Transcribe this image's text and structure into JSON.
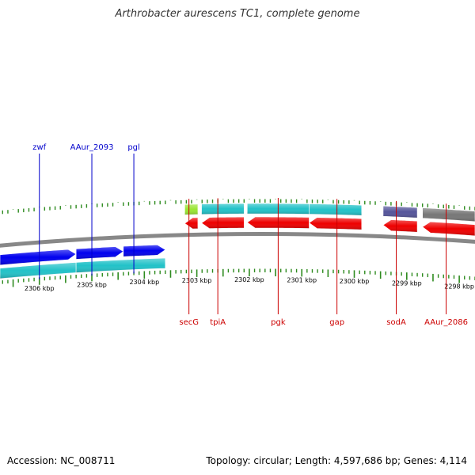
{
  "title": "Arthrobacter aurescens TC1, complete genome",
  "footer": {
    "accession": "Accession: NC_008711",
    "summary": "Topology: circular; Length: 4,597,686 bp; Genes: 4,114"
  },
  "scale": {
    "start_kbp": 2297.7,
    "end_kbp": 2306.75,
    "tick_labels": [
      {
        "kbp": 2306,
        "text": "2306 kbp"
      },
      {
        "kbp": 2305,
        "text": "2305 kbp"
      },
      {
        "kbp": 2304,
        "text": "2304 kbp"
      },
      {
        "kbp": 2303,
        "text": "2303 kbp"
      },
      {
        "kbp": 2302,
        "text": "2302 kbp"
      },
      {
        "kbp": 2301,
        "text": "2301 kbp"
      },
      {
        "kbp": 2300,
        "text": "2300 kbp"
      },
      {
        "kbp": 2299,
        "text": "2299 kbp"
      },
      {
        "kbp": 2298,
        "text": "2298 kbp"
      }
    ]
  },
  "colors": {
    "tick": "#2e8b1f",
    "forward_gene": "#0000ee",
    "reverse_gene": "#ee0000",
    "cds": "#22c2c8",
    "cds_alt_green": "#99e633",
    "cds_alt_purple": "#55559a",
    "cds_alt_gray": "#777777",
    "backbone": "#888888",
    "label_forward": "#0000cc",
    "label_reverse": "#cc0000"
  },
  "forward_genes": [
    {
      "name": "zwf",
      "start_kbp": 2306.75,
      "end_kbp": 2305.3
    },
    {
      "name": "AAur_2093",
      "start_kbp": 2305.3,
      "end_kbp": 2304.4
    },
    {
      "name": "pgl",
      "start_kbp": 2304.4,
      "end_kbp": 2303.6
    }
  ],
  "forward_cds": [
    {
      "start_kbp": 2306.75,
      "end_kbp": 2305.3,
      "color": "cds"
    },
    {
      "start_kbp": 2305.3,
      "end_kbp": 2303.6,
      "color": "cds"
    }
  ],
  "forward_labels": [
    {
      "text": "zwf",
      "kbp": 2306.0
    },
    {
      "text": "AAur_2093",
      "kbp": 2305.0
    },
    {
      "text": "pgl",
      "kbp": 2304.2
    }
  ],
  "reverse_genes": [
    {
      "name": "secG",
      "start_kbp": 2303.23,
      "end_kbp": 2302.98
    },
    {
      "name": "tpiA",
      "start_kbp": 2302.91,
      "end_kbp": 2302.1
    },
    {
      "name": "pgk",
      "start_kbp": 2302.04,
      "end_kbp": 2300.86
    },
    {
      "name": "gap",
      "start_kbp": 2300.86,
      "end_kbp": 2299.86
    },
    {
      "name": "sodA",
      "start_kbp": 2299.45,
      "end_kbp": 2298.8
    },
    {
      "name": "AAur_2086",
      "start_kbp": 2298.7,
      "end_kbp": 2297.7
    }
  ],
  "reverse_cds": [
    {
      "start_kbp": 2303.23,
      "end_kbp": 2302.98,
      "color": "cds_alt_green"
    },
    {
      "start_kbp": 2302.91,
      "end_kbp": 2302.1,
      "color": "cds"
    },
    {
      "start_kbp": 2302.04,
      "end_kbp": 2300.86,
      "color": "cds"
    },
    {
      "start_kbp": 2300.86,
      "end_kbp": 2299.86,
      "color": "cds"
    },
    {
      "start_kbp": 2299.45,
      "end_kbp": 2298.8,
      "color": "cds_alt_purple"
    },
    {
      "start_kbp": 2298.7,
      "end_kbp": 2297.7,
      "color": "cds_alt_gray"
    }
  ],
  "reverse_labels": [
    {
      "text": "secG",
      "kbp": 2303.15
    },
    {
      "text": "tpiA",
      "kbp": 2302.6
    },
    {
      "text": "pgk",
      "kbp": 2301.45
    },
    {
      "text": "gap",
      "kbp": 2300.33
    },
    {
      "text": "sodA",
      "kbp": 2299.2
    },
    {
      "text": "AAur_2086",
      "kbp": 2298.25
    }
  ]
}
